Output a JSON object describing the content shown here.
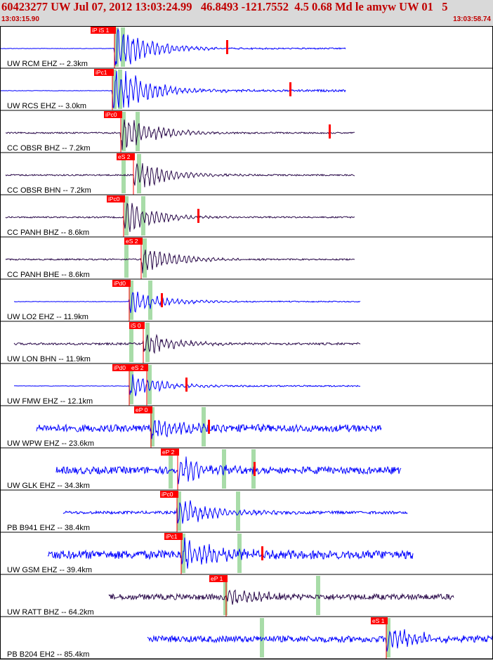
{
  "header": {
    "title": "60423277 UW Jul 07, 2012 13:03:24.99   46.8493 -121.7552  4.5 0.68 Md le amyw UW 01   5",
    "start_time": "13:03:15.90",
    "end_time": "13:03:58.74"
  },
  "colors": {
    "header_bg": "#d9d9d9",
    "header_text": "#c00000",
    "vertical_trace": "#0000ff",
    "horizontal_trace": "#2a0a4a",
    "pick_box": "#ff0000",
    "pick_text": "#ffffff",
    "phase_band": "#a8dca8",
    "grid": "#000000"
  },
  "channels": [
    {
      "label": "UW RCM EHZ -- 2.3km",
      "color": "blue",
      "picks": [
        {
          "text": "iP iS 1"
        }
      ]
    },
    {
      "label": "UW RCS EHZ -- 3.0km",
      "color": "blue",
      "picks": [
        {
          "text": "iPc1"
        }
      ]
    },
    {
      "label": "CC OBSR BHZ -- 7.2km",
      "color": "dark",
      "picks": [
        {
          "text": "iPc0"
        }
      ]
    },
    {
      "label": "CC OBSR BHN -- 7.2km",
      "color": "dark",
      "picks": [
        {
          "text": "eS 2"
        }
      ]
    },
    {
      "label": "CC PANH BHZ -- 8.6km",
      "color": "dark",
      "picks": [
        {
          "text": "iPc0"
        }
      ]
    },
    {
      "label": "CC PANH BHE -- 8.6km",
      "color": "dark",
      "picks": [
        {
          "text": "eS 2"
        }
      ]
    },
    {
      "label": "UW LO2 EHZ -- 11.9km",
      "color": "blue",
      "picks": [
        {
          "text": "iPd0"
        }
      ]
    },
    {
      "label": "UW LON BHN -- 11.9km",
      "color": "dark",
      "picks": [
        {
          "text": "iS 0"
        }
      ]
    },
    {
      "label": "UW FMW EHZ -- 12.1km",
      "color": "blue",
      "picks": [
        {
          "text": "iPd0"
        },
        {
          "text": "eS 2"
        }
      ]
    },
    {
      "label": "UW WPW EHZ -- 23.6km",
      "color": "blue",
      "picks": [
        {
          "text": "eP 0"
        }
      ]
    },
    {
      "label": "UW GLK EHZ -- 34.3km",
      "color": "blue",
      "picks": [
        {
          "text": "eP 2"
        }
      ]
    },
    {
      "label": "PB B941 EHZ -- 38.4km",
      "color": "blue",
      "picks": [
        {
          "text": "iPc0"
        }
      ]
    },
    {
      "label": "UW GSM EHZ -- 39.4km",
      "color": "blue",
      "picks": [
        {
          "text": "iPc1"
        }
      ]
    },
    {
      "label": "UW RATT BHZ -- 64.2km",
      "color": "dark",
      "picks": [
        {
          "text": "eP 1"
        }
      ]
    },
    {
      "label": "PB B204 EH2 -- 85.4km",
      "color": "blue",
      "picks": [
        {
          "text": "eS 1"
        }
      ]
    }
  ]
}
